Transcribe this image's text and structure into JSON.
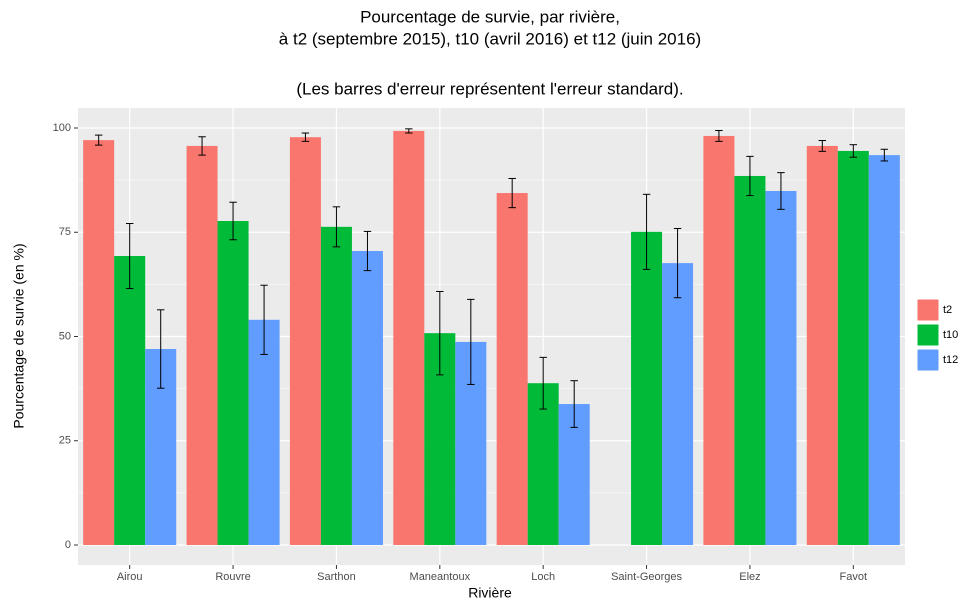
{
  "chart_data": {
    "type": "bar",
    "title": [
      "Pourcentage de survie, par rivière,",
      "à t2 (septembre 2015), t10 (avril 2016) et t12 (juin 2016)"
    ],
    "subtitle": "(Les barres d'erreur représentent l'erreur standard).",
    "x_label": "Rivière",
    "y_label": "Pourcentage de survie (en %)",
    "categories": [
      "Airou",
      "Rouvre",
      "Sarthon",
      "Maneantoux",
      "Loch",
      "Saint-Georges",
      "Elez",
      "Favot"
    ],
    "series": [
      {
        "name": "t2",
        "color": "#F8766D",
        "values": [
          97.1,
          95.7,
          97.8,
          99.3,
          84.4,
          null,
          98.1,
          95.7
        ],
        "errors": [
          1.2,
          2.2,
          1.0,
          0.5,
          3.5,
          null,
          1.3,
          1.3
        ]
      },
      {
        "name": "t10",
        "color": "#00BA38",
        "values": [
          69.3,
          77.7,
          76.3,
          50.8,
          38.8,
          75.1,
          88.5,
          94.5
        ],
        "errors": [
          7.8,
          4.5,
          4.8,
          10.0,
          6.2,
          9.0,
          4.7,
          1.5
        ]
      },
      {
        "name": "t12",
        "color": "#619CFF",
        "values": [
          47.0,
          54.0,
          70.5,
          48.7,
          33.8,
          67.6,
          84.9,
          93.5
        ],
        "errors": [
          9.4,
          8.3,
          4.7,
          10.2,
          5.6,
          8.3,
          4.4,
          1.4
        ]
      }
    ],
    "ylim": [
      -4.8,
      104.8
    ],
    "yticks": [
      0,
      25,
      50,
      75,
      100
    ],
    "grid": true,
    "legend_position": "right"
  }
}
